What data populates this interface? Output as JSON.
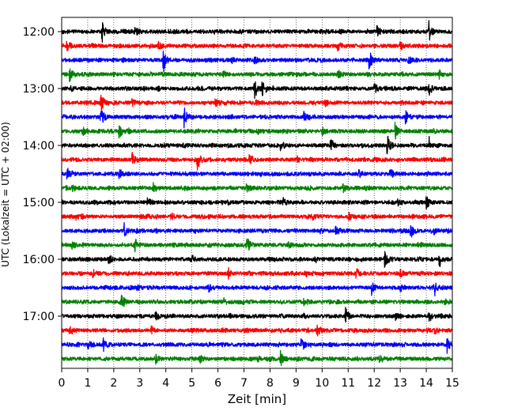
{
  "chart_data": {
    "type": "line",
    "xlabel": "Zeit  [min]",
    "ylabel": "UTC (Lokalzeit = UTC + 02:00)",
    "xlim": [
      0,
      15
    ],
    "x_ticks": [
      "0",
      "1",
      "2",
      "3",
      "4",
      "5",
      "6",
      "7",
      "8",
      "9",
      "10",
      "11",
      "12",
      "13",
      "14",
      "15"
    ],
    "time_tick_labels": [
      "12:00",
      "13:00",
      "14:00",
      "15:00",
      "16:00",
      "17:00"
    ],
    "grid": "vertical dotted lines at each minute",
    "trace_colors": [
      "#000000",
      "#ff0000",
      "#0000ff",
      "#008000"
    ],
    "traces_start_utc": [
      "12:00",
      "12:15",
      "12:30",
      "12:45",
      "13:00",
      "13:15",
      "13:30",
      "13:45",
      "14:00",
      "14:15",
      "14:30",
      "14:45",
      "15:00",
      "15:15",
      "15:30",
      "15:45",
      "16:00",
      "16:15",
      "16:30",
      "16:45",
      "17:00",
      "17:15",
      "17:30",
      "17:45"
    ],
    "events": [
      [
        [
          1.55,
          1.0
        ],
        [
          2.8,
          0.5
        ],
        [
          12.1,
          0.55
        ],
        [
          14.1,
          0.8
        ]
      ],
      [
        [
          0.2,
          0.5
        ],
        [
          3.7,
          0.3
        ],
        [
          10.6,
          0.35
        ],
        [
          13.0,
          0.3
        ]
      ],
      [
        [
          3.9,
          1.0
        ],
        [
          11.8,
          0.9
        ],
        [
          7.4,
          0.3
        ],
        [
          13.3,
          0.3
        ]
      ],
      [
        [
          0.3,
          0.55
        ],
        [
          6.2,
          0.3
        ],
        [
          10.6,
          0.35
        ],
        [
          14.5,
          0.3
        ]
      ],
      [
        [
          7.4,
          1.0
        ],
        [
          7.7,
          0.6
        ],
        [
          12.0,
          0.5
        ],
        [
          14.1,
          0.6
        ]
      ],
      [
        [
          1.5,
          1.0
        ],
        [
          2.7,
          0.35
        ],
        [
          5.9,
          0.35
        ],
        [
          10.1,
          0.3
        ]
      ],
      [
        [
          1.5,
          0.9
        ],
        [
          4.7,
          0.95
        ],
        [
          9.3,
          0.35
        ],
        [
          13.2,
          0.5
        ]
      ],
      [
        [
          0.8,
          0.4
        ],
        [
          2.2,
          0.6
        ],
        [
          12.8,
          0.7
        ],
        [
          10.0,
          0.3
        ]
      ],
      [
        [
          8.4,
          0.35
        ],
        [
          10.3,
          0.6
        ],
        [
          12.5,
          0.9
        ],
        [
          14.1,
          0.7
        ]
      ],
      [
        [
          2.7,
          0.55
        ],
        [
          5.2,
          1.0
        ],
        [
          7.2,
          0.4
        ],
        [
          9.0,
          0.3
        ]
      ],
      [
        [
          0.2,
          0.6
        ],
        [
          2.2,
          0.35
        ],
        [
          11.4,
          0.3
        ],
        [
          12.6,
          0.5
        ]
      ],
      [
        [
          0.4,
          0.3
        ],
        [
          3.5,
          0.5
        ],
        [
          7.1,
          0.3
        ],
        [
          10.8,
          0.35
        ]
      ],
      [
        [
          3.3,
          0.3
        ],
        [
          8.5,
          0.3
        ],
        [
          12.9,
          0.3
        ],
        [
          14.0,
          0.55
        ]
      ],
      [
        [
          0.5,
          0.4
        ],
        [
          4.2,
          0.3
        ],
        [
          9.6,
          0.3
        ],
        [
          11.0,
          0.3
        ]
      ],
      [
        [
          2.4,
          0.55
        ],
        [
          10.5,
          0.5
        ],
        [
          13.4,
          0.6
        ],
        [
          14.3,
          0.4
        ]
      ],
      [
        [
          0.4,
          0.3
        ],
        [
          2.8,
          0.6
        ],
        [
          7.1,
          0.9
        ],
        [
          8.7,
          0.3
        ]
      ],
      [
        [
          1.8,
          0.35
        ],
        [
          5.0,
          0.3
        ],
        [
          12.4,
          0.85
        ],
        [
          14.5,
          0.75
        ]
      ],
      [
        [
          1.2,
          0.3
        ],
        [
          6.4,
          0.3
        ],
        [
          11.3,
          0.45
        ],
        [
          13.0,
          0.3
        ]
      ],
      [
        [
          5.6,
          0.4
        ],
        [
          11.9,
          0.45
        ],
        [
          13.0,
          0.35
        ],
        [
          14.3,
          0.9
        ]
      ],
      [
        [
          2.3,
          0.5
        ],
        [
          6.2,
          0.3
        ],
        [
          9.3,
          0.3
        ],
        [
          14.7,
          0.3
        ]
      ],
      [
        [
          3.6,
          0.3
        ],
        [
          10.9,
          0.6
        ],
        [
          12.8,
          0.3
        ],
        [
          14.1,
          0.5
        ]
      ],
      [
        [
          0.3,
          0.4
        ],
        [
          3.4,
          0.3
        ],
        [
          9.8,
          0.5
        ],
        [
          14.3,
          0.3
        ]
      ],
      [
        [
          1.0,
          0.35
        ],
        [
          1.6,
          0.55
        ],
        [
          9.2,
          0.75
        ],
        [
          14.8,
          0.7
        ]
      ],
      [
        [
          3.6,
          0.35
        ],
        [
          5.3,
          0.3
        ],
        [
          8.4,
          0.6
        ],
        [
          12.2,
          0.3
        ]
      ]
    ]
  }
}
